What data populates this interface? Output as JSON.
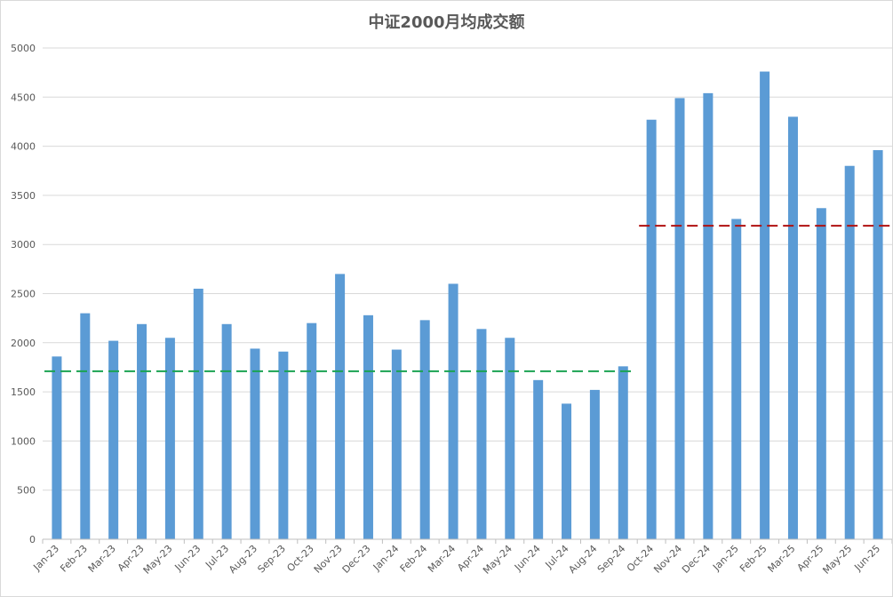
{
  "chart_data": {
    "type": "bar",
    "title": "中证2000月均成交额",
    "xlabel": "",
    "ylabel": "",
    "ylim": [
      0,
      5000
    ],
    "yticks": [
      0,
      500,
      1000,
      1500,
      2000,
      2500,
      3000,
      3500,
      4000,
      4500,
      5000
    ],
    "grid": true,
    "legend": "none",
    "categories": [
      "Jan-23",
      "Feb-23",
      "Mar-23",
      "Apr-23",
      "May-23",
      "Jun-23",
      "Jul-23",
      "Aug-23",
      "Sep-23",
      "Oct-23",
      "Nov-23",
      "Dec-23",
      "Jan-24",
      "Feb-24",
      "Mar-24",
      "Apr-24",
      "May-24",
      "Jun-24",
      "Jul-24",
      "Aug-24",
      "Sep-24",
      "Oct-24",
      "Nov-24",
      "Dec-24",
      "Jan-25",
      "Feb-25",
      "Mar-25",
      "Apr-25",
      "May-25",
      "Jun-25"
    ],
    "values": [
      1860,
      2300,
      2020,
      2190,
      2050,
      2550,
      2190,
      1940,
      1910,
      2200,
      2700,
      2280,
      1930,
      2230,
      2600,
      2140,
      2050,
      1620,
      1380,
      1520,
      1760,
      4270,
      4490,
      4540,
      3260,
      4760,
      4300,
      3370,
      3800,
      3960
    ],
    "reference_lines": [
      {
        "value": 1710,
        "from": "Jan-23",
        "to": "Sep-24",
        "color": "#1aa352",
        "style": "dashed"
      },
      {
        "value": 3190,
        "from": "Oct-24",
        "to": "Jun-25",
        "color": "#b01010",
        "style": "dashed"
      }
    ],
    "colors": {
      "bar": "#5b9bd5",
      "grid": "#d9d9d9",
      "axis": "#bfbfbf",
      "text": "#595959"
    }
  }
}
